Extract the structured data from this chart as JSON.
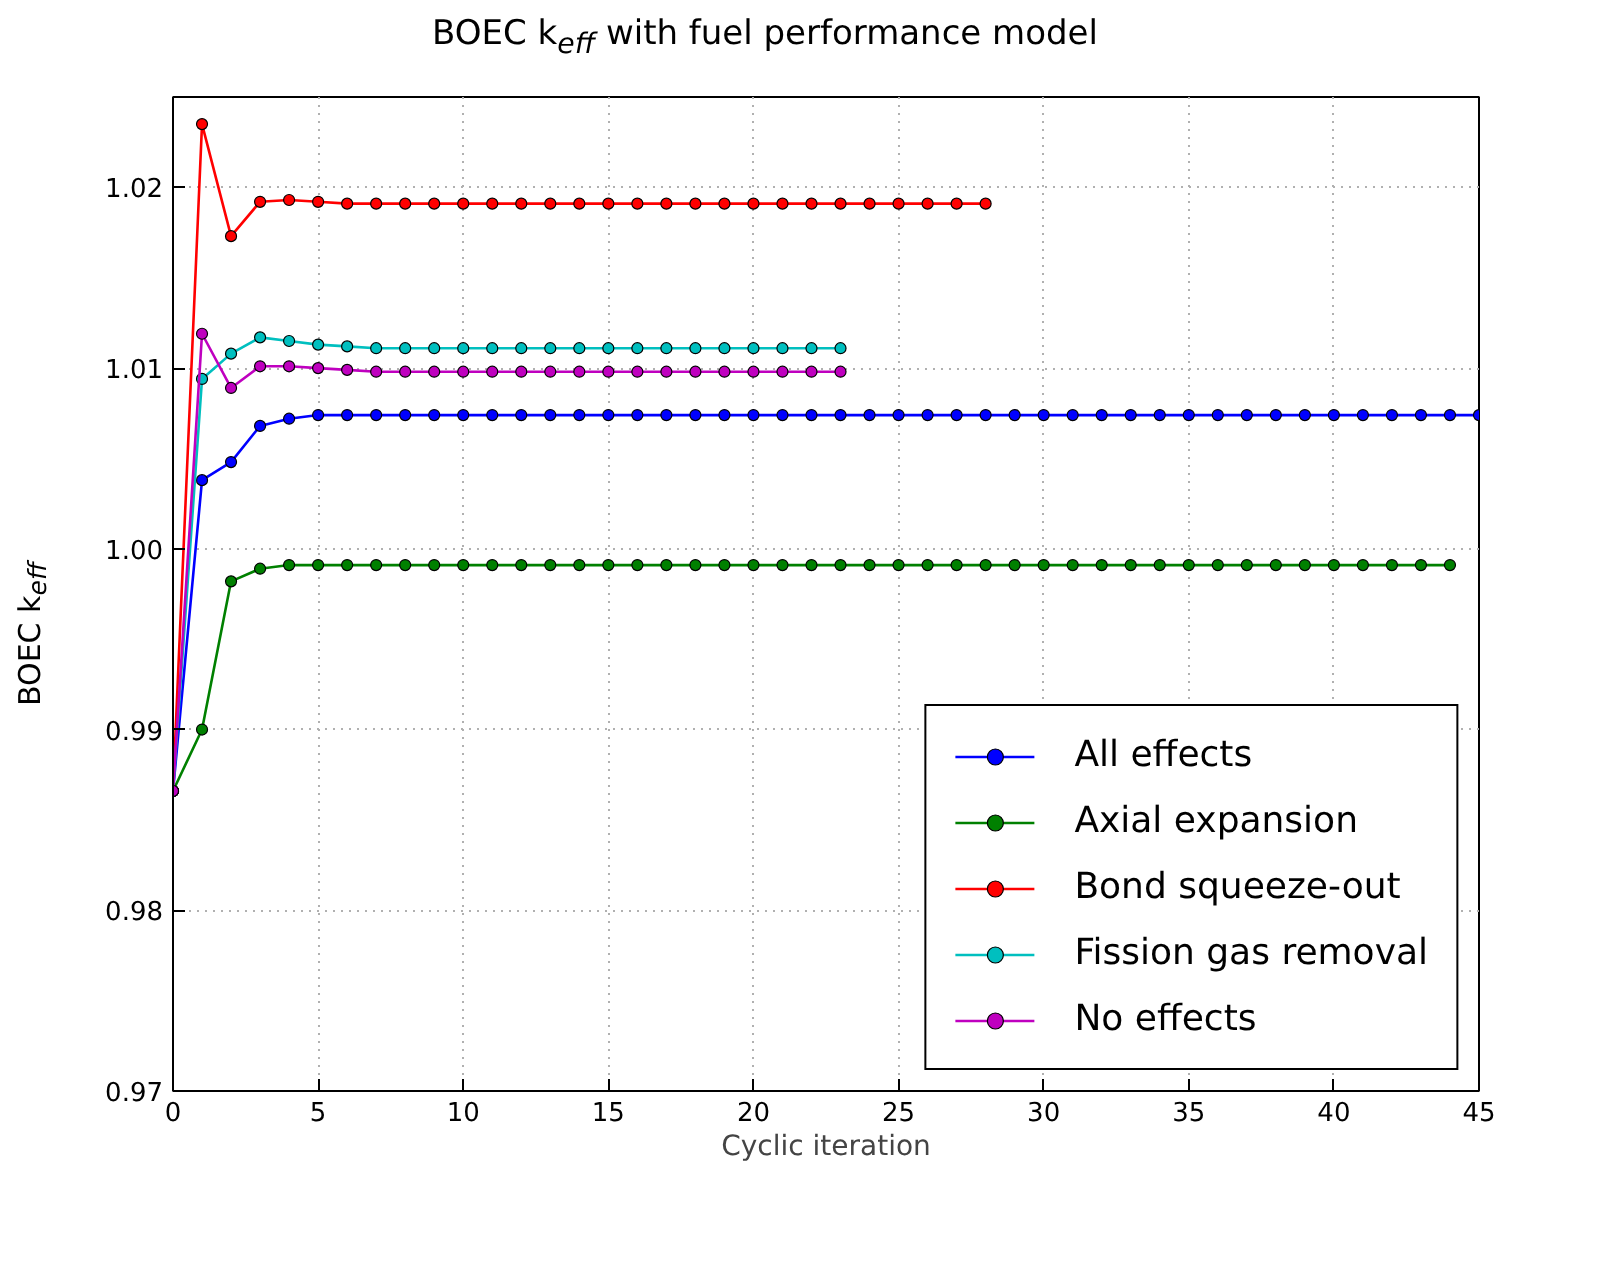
{
  "chart_data": {
    "type": "line",
    "title": "BOEC k$_{eff}$ with fuel performance model",
    "xlabel": "Cyclic iteration",
    "ylabel": "BOEC k$_{eff}$",
    "xlim": [
      0,
      45
    ],
    "xticks": [
      0,
      5,
      10,
      15,
      20,
      25,
      30,
      35,
      40,
      45
    ],
    "ylim": [
      0.97,
      1.025
    ],
    "yticks": [
      {
        "value": 0.97,
        "label": "0.97"
      },
      {
        "value": 0.98,
        "label": "0.98"
      },
      {
        "value": 0.99,
        "label": "0.99"
      },
      {
        "value": 1.0,
        "label": "1.00"
      },
      {
        "value": 1.01,
        "label": "1.01"
      },
      {
        "value": 1.02,
        "label": "1.02"
      }
    ],
    "grid": true,
    "legend": "bottom right",
    "marker": "circle",
    "line_style": "solid",
    "series": [
      {
        "name": "All effects",
        "color": "#0000ff",
        "x": [
          0,
          1,
          2,
          3,
          4,
          5,
          6,
          7,
          8,
          9,
          10,
          11,
          12,
          13,
          14,
          15,
          16,
          17,
          18,
          19,
          20,
          21,
          22,
          23,
          24,
          25,
          26,
          27,
          28,
          29,
          30,
          31,
          32,
          33,
          34,
          35,
          36,
          37,
          38,
          39,
          40,
          41,
          42,
          43,
          44,
          45
        ],
        "values": [
          0.9866,
          1.0038,
          1.0048,
          1.0068,
          1.0072,
          1.0074,
          1.0074,
          1.0074,
          1.0074,
          1.0074,
          1.0074,
          1.0074,
          1.0074,
          1.0074,
          1.0074,
          1.0074,
          1.0074,
          1.0074,
          1.0074,
          1.0074,
          1.0074,
          1.0074,
          1.0074,
          1.0074,
          1.0074,
          1.0074,
          1.0074,
          1.0074,
          1.0074,
          1.0074,
          1.0074,
          1.0074,
          1.0074,
          1.0074,
          1.0074,
          1.0074,
          1.0074,
          1.0074,
          1.0074,
          1.0074,
          1.0074,
          1.0074,
          1.0074,
          1.0074,
          1.0074,
          1.0074
        ]
      },
      {
        "name": "Axial expansion",
        "color": "#008000",
        "x": [
          0,
          1,
          2,
          3,
          4,
          5,
          6,
          7,
          8,
          9,
          10,
          11,
          12,
          13,
          14,
          15,
          16,
          17,
          18,
          19,
          20,
          21,
          22,
          23,
          24,
          25,
          26,
          27,
          28,
          29,
          30,
          31,
          32,
          33,
          34,
          35,
          36,
          37,
          38,
          39,
          40,
          41,
          42,
          43,
          44
        ],
        "values": [
          0.9866,
          0.99,
          0.9982,
          0.9989,
          0.9991,
          0.9991,
          0.9991,
          0.9991,
          0.9991,
          0.9991,
          0.9991,
          0.9991,
          0.9991,
          0.9991,
          0.9991,
          0.9991,
          0.9991,
          0.9991,
          0.9991,
          0.9991,
          0.9991,
          0.9991,
          0.9991,
          0.9991,
          0.9991,
          0.9991,
          0.9991,
          0.9991,
          0.9991,
          0.9991,
          0.9991,
          0.9991,
          0.9991,
          0.9991,
          0.9991,
          0.9991,
          0.9991,
          0.9991,
          0.9991,
          0.9991,
          0.9991,
          0.9991,
          0.9991,
          0.9991,
          0.9991
        ]
      },
      {
        "name": "Bond squeeze-out",
        "color": "#ff0000",
        "x": [
          0,
          1,
          2,
          3,
          4,
          5,
          6,
          7,
          8,
          9,
          10,
          11,
          12,
          13,
          14,
          15,
          16,
          17,
          18,
          19,
          20,
          21,
          22,
          23,
          24,
          25,
          26,
          27,
          28
        ],
        "values": [
          0.9866,
          1.0235,
          1.0173,
          1.0192,
          1.0193,
          1.0192,
          1.0191,
          1.0191,
          1.0191,
          1.0191,
          1.0191,
          1.0191,
          1.0191,
          1.0191,
          1.0191,
          1.0191,
          1.0191,
          1.0191,
          1.0191,
          1.0191,
          1.0191,
          1.0191,
          1.0191,
          1.0191,
          1.0191,
          1.0191,
          1.0191,
          1.0191,
          1.0191
        ]
      },
      {
        "name": "Fission gas removal",
        "color": "#00bfbf",
        "x": [
          0,
          1,
          2,
          3,
          4,
          5,
          6,
          7,
          8,
          9,
          10,
          11,
          12,
          13,
          14,
          15,
          16,
          17,
          18,
          19,
          20,
          21,
          22,
          23
        ],
        "values": [
          0.9866,
          1.0094,
          1.0108,
          1.0117,
          1.0115,
          1.0113,
          1.0112,
          1.0111,
          1.0111,
          1.0111,
          1.0111,
          1.0111,
          1.0111,
          1.0111,
          1.0111,
          1.0111,
          1.0111,
          1.0111,
          1.0111,
          1.0111,
          1.0111,
          1.0111,
          1.0111,
          1.0111
        ]
      },
      {
        "name": "No effects",
        "color": "#bf00bf",
        "x": [
          0,
          1,
          2,
          3,
          4,
          5,
          6,
          7,
          8,
          9,
          10,
          11,
          12,
          13,
          14,
          15,
          16,
          17,
          18,
          19,
          20,
          21,
          22,
          23
        ],
        "values": [
          0.9866,
          1.0119,
          1.0089,
          1.0101,
          1.0101,
          1.01,
          1.0099,
          1.0098,
          1.0098,
          1.0098,
          1.0098,
          1.0098,
          1.0098,
          1.0098,
          1.0098,
          1.0098,
          1.0098,
          1.0098,
          1.0098,
          1.0098,
          1.0098,
          1.0098,
          1.0098,
          1.0098
        ]
      }
    ]
  }
}
